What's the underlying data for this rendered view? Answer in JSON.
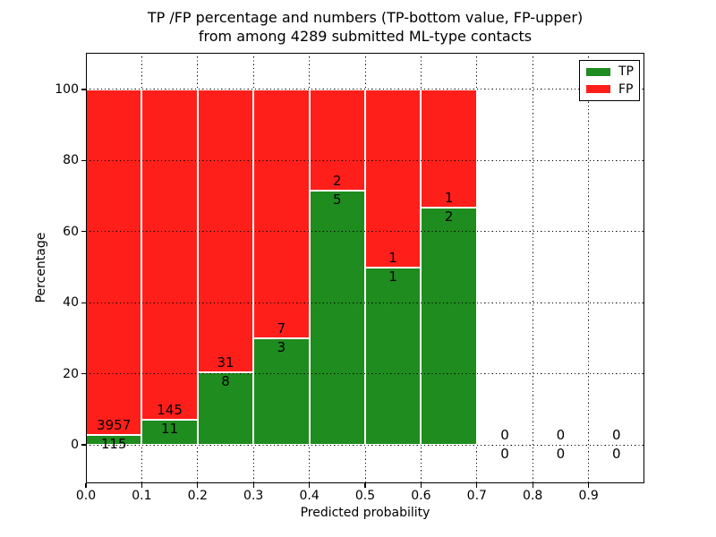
{
  "title": {
    "line1": "TP /FP percentage and numbers (TP-bottom value, FP-upper)",
    "line2": "from among 4289 submitted ML-type contacts"
  },
  "axes": {
    "xlabel": "Predicted probability",
    "ylabel": "Percentage"
  },
  "legend": {
    "position": "upper right",
    "items": [
      {
        "label": "TP",
        "color": "#1e8c1e"
      },
      {
        "label": "FP",
        "color": "#ff1f1a"
      }
    ]
  },
  "colors": {
    "tp_green": "#1e8c1e",
    "fp_red": "#ff1f1a",
    "bar_edge": "#ffffff",
    "grid": "#000000",
    "frame": "#000000",
    "background": "#ffffff"
  },
  "chart_data": {
    "type": "bar",
    "stacked": true,
    "normalized_to_percent": true,
    "title": "TP /FP percentage and numbers (TP-bottom value, FP-upper) from among 4289 submitted ML-type contacts",
    "xlabel": "Predicted probability",
    "ylabel": "Percentage",
    "xlim": [
      0.0,
      1.0
    ],
    "ylim": [
      -10.8,
      110.3
    ],
    "xticks": [
      "0.0",
      "0.1",
      "0.2",
      "0.3",
      "0.4",
      "0.5",
      "0.6",
      "0.7",
      "0.8",
      "0.9"
    ],
    "yticks": [
      0,
      20,
      40,
      60,
      80,
      100
    ],
    "grid": true,
    "grid_style": "dotted",
    "legend_position": "upper right",
    "total_contacts": 4289,
    "series": [
      {
        "name": "TP",
        "color": "#1e8c1e"
      },
      {
        "name": "FP",
        "color": "#ff1f1a"
      }
    ],
    "bins": [
      {
        "range": [
          0.0,
          0.1
        ],
        "tp": 115,
        "fp": 3957
      },
      {
        "range": [
          0.1,
          0.2
        ],
        "tp": 11,
        "fp": 145
      },
      {
        "range": [
          0.2,
          0.3
        ],
        "tp": 8,
        "fp": 31
      },
      {
        "range": [
          0.3,
          0.4
        ],
        "tp": 3,
        "fp": 7
      },
      {
        "range": [
          0.4,
          0.5
        ],
        "tp": 5,
        "fp": 2
      },
      {
        "range": [
          0.5,
          0.6
        ],
        "tp": 1,
        "fp": 1
      },
      {
        "range": [
          0.6,
          0.7
        ],
        "tp": 2,
        "fp": 1
      },
      {
        "range": [
          0.7,
          0.8
        ],
        "tp": 0,
        "fp": 0
      },
      {
        "range": [
          0.8,
          0.9
        ],
        "tp": 0,
        "fp": 0
      },
      {
        "range": [
          0.9,
          1.0
        ],
        "tp": 0,
        "fp": 0
      }
    ]
  }
}
